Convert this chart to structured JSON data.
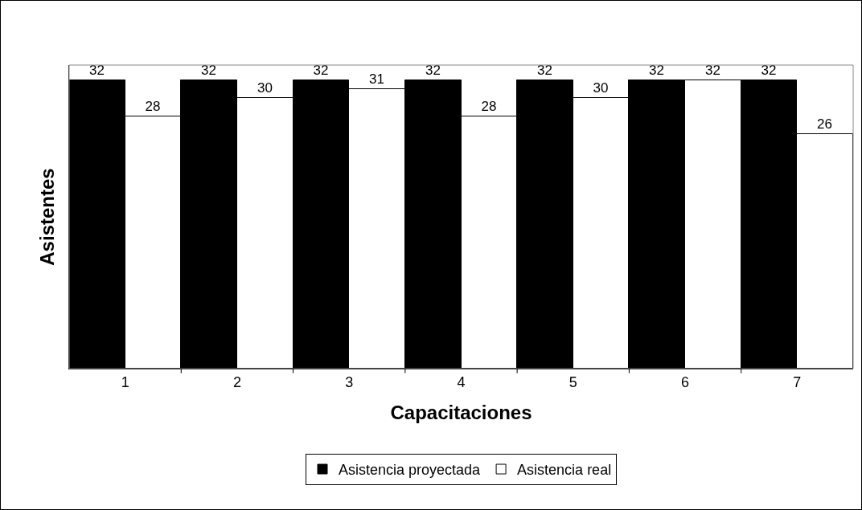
{
  "chart_data": {
    "type": "bar",
    "xlabel": "Capacitaciones",
    "ylabel": "Asistentes",
    "categories": [
      "1",
      "2",
      "3",
      "4",
      "5",
      "6",
      "7"
    ],
    "series": [
      {
        "name": "Asistencia proyectada",
        "color": "#000000",
        "values": [
          32,
          32,
          32,
          32,
          32,
          32,
          32
        ]
      },
      {
        "name": "Asistencia real",
        "color": "#ffffff",
        "values": [
          28,
          30,
          31,
          28,
          30,
          32,
          26
        ]
      }
    ],
    "data_labels": true,
    "legend": "bottom",
    "grid": false
  }
}
